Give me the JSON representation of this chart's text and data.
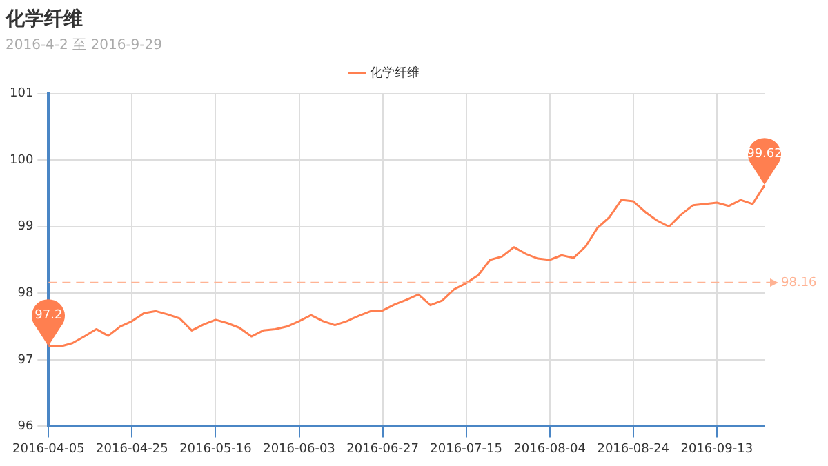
{
  "chart_data": {
    "type": "line",
    "title": "化学纤维",
    "subtitle": "2016-4-2 至 2016-9-29",
    "categories": [
      "2016-04-05",
      null,
      null,
      null,
      null,
      null,
      null,
      "2016-04-25",
      null,
      null,
      null,
      null,
      null,
      null,
      "2016-05-16",
      null,
      null,
      null,
      null,
      null,
      null,
      "2016-06-03",
      null,
      null,
      null,
      null,
      null,
      null,
      "2016-06-27",
      null,
      null,
      null,
      null,
      null,
      null,
      "2016-07-15",
      null,
      null,
      null,
      null,
      null,
      null,
      "2016-08-04",
      null,
      null,
      null,
      null,
      null,
      null,
      "2016-08-24",
      null,
      null,
      null,
      null,
      null,
      null,
      "2016-09-13",
      null,
      null,
      null,
      null
    ],
    "series": [
      {
        "name": "化学纤维",
        "color": "#ff7f50",
        "values": [
          97.2,
          97.2,
          97.25,
          97.35,
          97.46,
          97.36,
          97.5,
          97.58,
          97.7,
          97.73,
          97.68,
          97.62,
          97.44,
          97.53,
          97.6,
          97.55,
          97.48,
          97.35,
          97.44,
          97.46,
          97.5,
          97.58,
          97.67,
          97.58,
          97.52,
          97.58,
          97.66,
          97.73,
          97.74,
          97.83,
          97.9,
          97.98,
          97.82,
          97.89,
          98.06,
          98.15,
          98.27,
          98.5,
          98.55,
          98.69,
          98.59,
          98.52,
          98.5,
          98.57,
          98.53,
          98.7,
          98.98,
          99.14,
          99.4,
          99.38,
          99.22,
          99.09,
          99.0,
          99.18,
          99.32,
          99.34,
          99.36,
          99.31,
          99.4,
          99.34,
          99.62
        ]
      }
    ],
    "ylim": [
      96,
      101
    ],
    "yticks": [
      96,
      97,
      98,
      99,
      100,
      101
    ],
    "ref_lines": [
      {
        "axis": "y",
        "value": 98.16,
        "label": "98.16",
        "color": "#ffb394",
        "line_style": "dashed"
      }
    ],
    "annotations": [
      {
        "text": "97.2",
        "x": "2016-04-05",
        "y": 97.2
      },
      {
        "text": "99.62",
        "y": 99.62
      }
    ],
    "grid": true,
    "legend": "top",
    "marker": "none",
    "line_style": "solid"
  }
}
